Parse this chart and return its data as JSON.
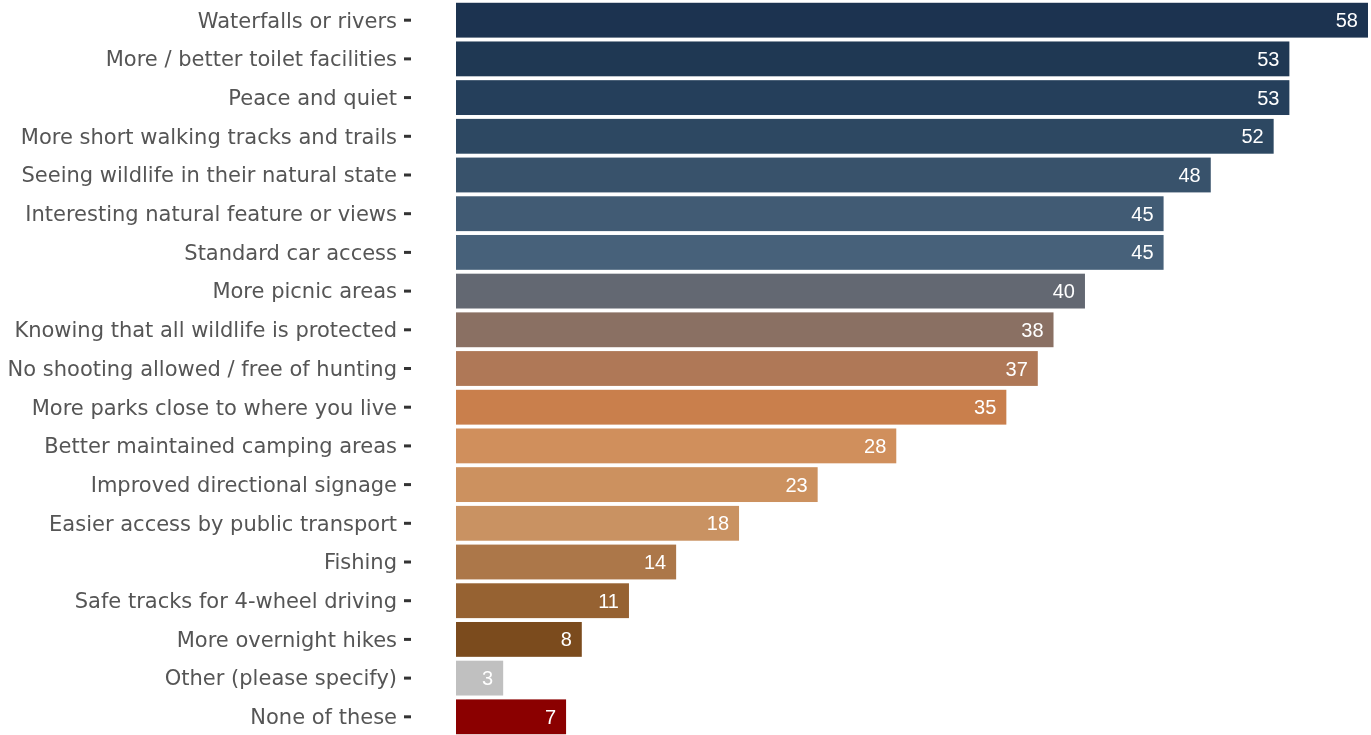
{
  "chart_data": {
    "type": "bar",
    "orientation": "horizontal",
    "data_labels": true,
    "categories": [
      "Waterfalls or rivers",
      "More / better toilet facilities",
      "Peace and quiet",
      "More short walking tracks and trails",
      "Seeing wildlife in their natural state",
      "Interesting natural feature or views",
      "Standard car access",
      "More picnic areas",
      "Knowing that all wildlife is protected",
      "No shooting allowed / free of hunting",
      "More parks close to where you live",
      "Better maintained camping areas",
      "Improved directional signage",
      "Easier access by public transport",
      "Fishing",
      "Safe tracks for 4-wheel driving",
      "More overnight hikes",
      "Other (please specify)",
      "None of these"
    ],
    "values": [
      58,
      53,
      53,
      52,
      48,
      45,
      45,
      40,
      38,
      37,
      35,
      28,
      23,
      18,
      14,
      11,
      8,
      3,
      7
    ],
    "colors": [
      "#1c3350",
      "#1f3853",
      "#253f5b",
      "#2d4862",
      "#38526b",
      "#415b74",
      "#47617a",
      "#636872",
      "#8a7063",
      "#af7857",
      "#c97f4c",
      "#d08f5c",
      "#cc915f",
      "#c99262",
      "#ac7749",
      "#966232",
      "#7b4b1d",
      "#c0c0c0",
      "#8b0000"
    ]
  }
}
